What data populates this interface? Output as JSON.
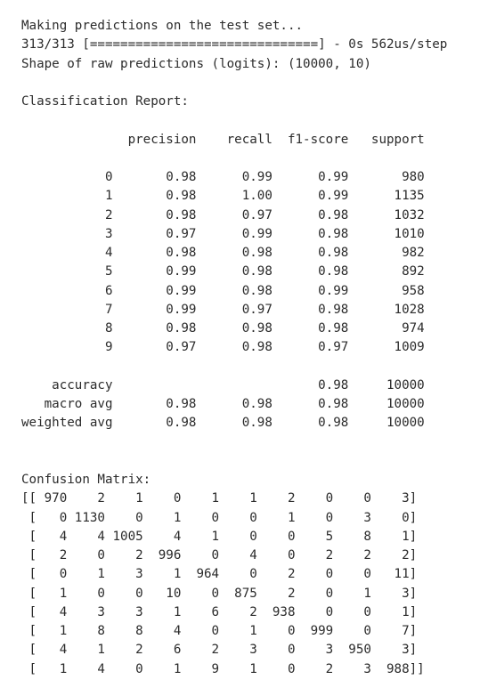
{
  "output": {
    "lines": [
      "Making predictions on the test set...",
      "313/313 [==============================] - 0s 562us/step",
      "Shape of raw predictions (logits): (10000, 10)",
      "",
      "Classification Report:",
      "",
      "              precision    recall  f1-score   support",
      "",
      "           0       0.98      0.99      0.99       980",
      "           1       0.98      1.00      0.99      1135",
      "           2       0.98      0.97      0.98      1032",
      "           3       0.97      0.99      0.98      1010",
      "           4       0.98      0.98      0.98       982",
      "           5       0.99      0.98      0.98       892",
      "           6       0.99      0.98      0.99       958",
      "           7       0.99      0.97      0.98      1028",
      "           8       0.98      0.98      0.98       974",
      "           9       0.97      0.98      0.97      1009",
      "",
      "    accuracy                           0.98     10000",
      "   macro avg       0.98      0.98      0.98     10000",
      "weighted avg       0.98      0.98      0.98     10000",
      "",
      "",
      "Confusion Matrix:",
      "[[ 970    2    1    0    1    1    2    0    0    3]",
      " [   0 1130    0    1    0    0    1    0    3    0]",
      " [   4    4 1005    4    1    0    0    5    8    1]",
      " [   2    0    2  996    0    4    0    2    2    2]",
      " [   0    1    3    1  964    0    2    0    0   11]",
      " [   1    0    0   10    0  875    2    0    1    3]",
      " [   4    3    3    1    6    2  938    0    0    1]",
      " [   1    8    8    4    0    1    0  999    0    7]",
      " [   4    1    2    6    2    3    0    3  950    3]",
      " [   1    4    0    1    9    1    0    2    3  988]]"
    ]
  }
}
